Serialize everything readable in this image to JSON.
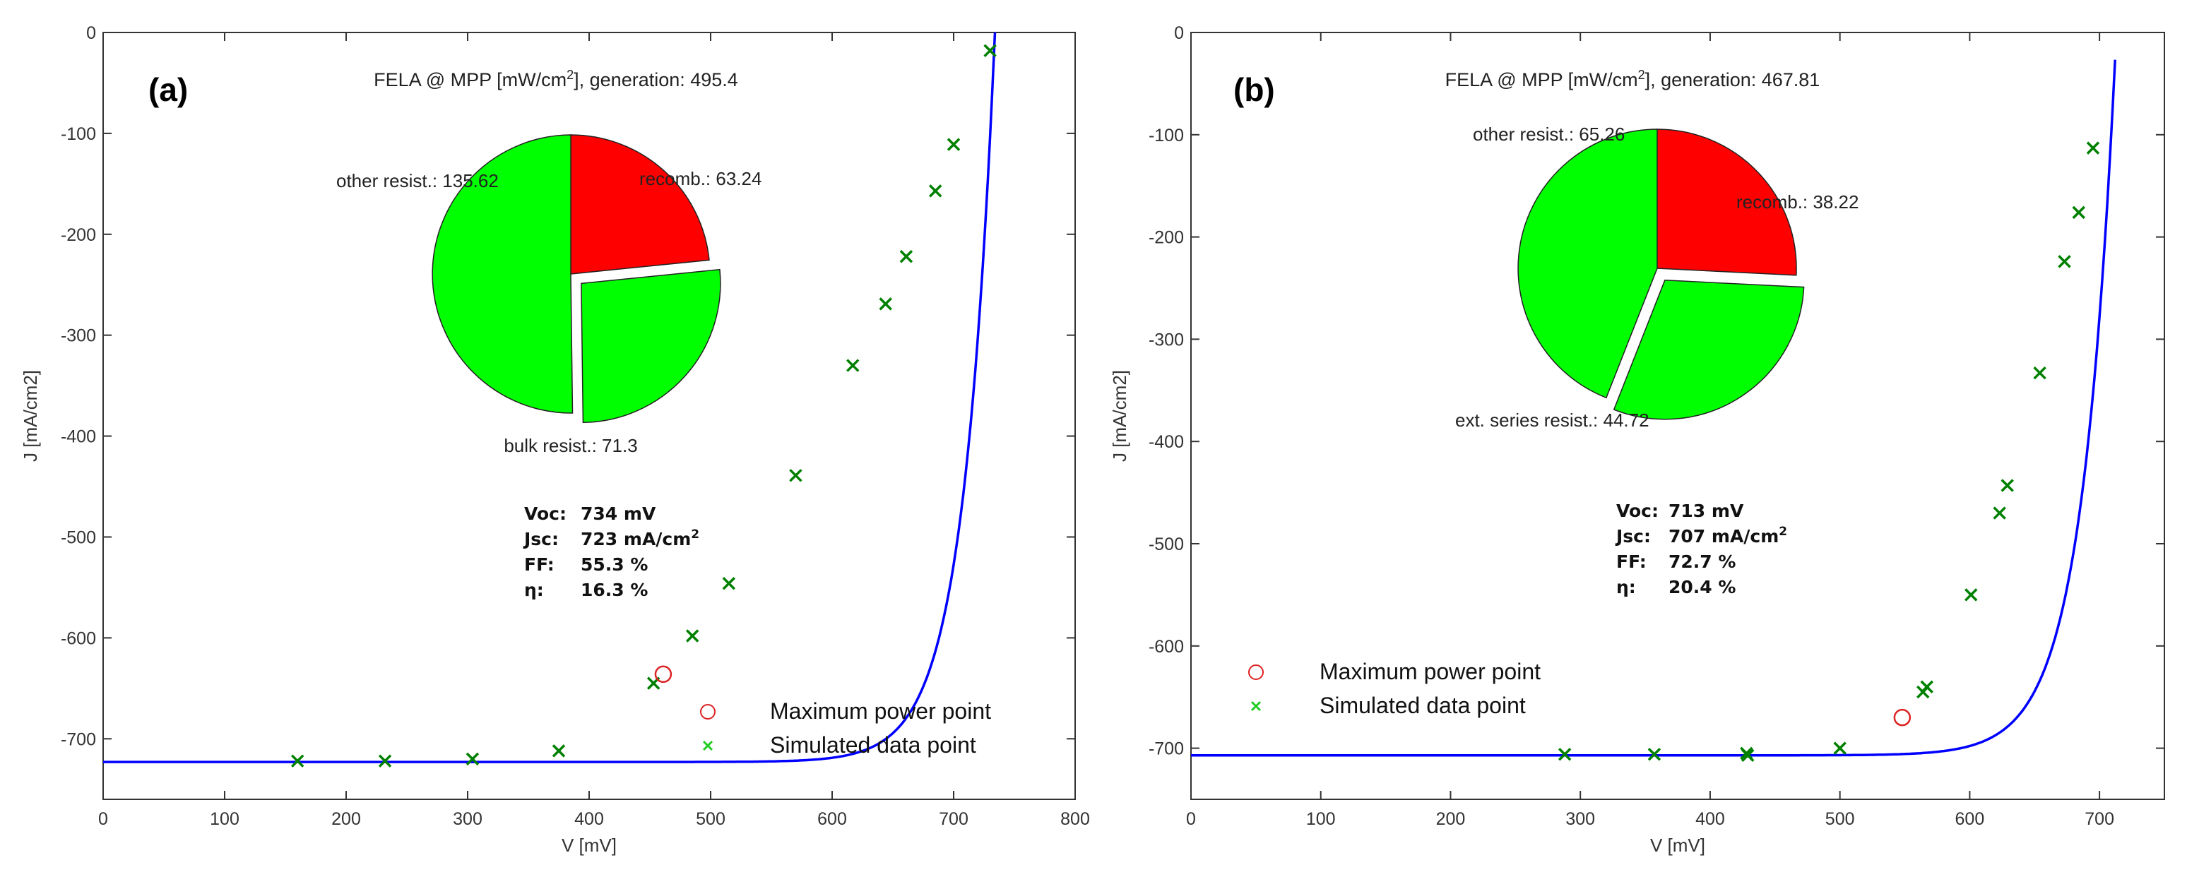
{
  "chart_data": [
    {
      "type": "line",
      "panel": "(a)",
      "title_prefix": "FELA @ MPP [mW/cm",
      "title_sup": "2",
      "title_suffix": "], generation: 495.4",
      "xlabel": "V [mV]",
      "ylabel": "J [mA/cm2]",
      "xlim": [
        0,
        800
      ],
      "ylim": [
        -760,
        0
      ],
      "xticks": [
        0,
        100,
        200,
        300,
        400,
        500,
        600,
        700,
        800
      ],
      "yticks": [
        0,
        -100,
        -200,
        -300,
        -400,
        -500,
        -600,
        -700
      ],
      "curve": {
        "jsc": -723,
        "voc": 734
      },
      "simulated_points": [
        [
          160,
          -722
        ],
        [
          232,
          -722
        ],
        [
          304,
          -720
        ],
        [
          375,
          -712
        ],
        [
          453,
          -645
        ],
        [
          485,
          -598
        ],
        [
          515,
          -546
        ],
        [
          570,
          -439
        ],
        [
          617,
          -330
        ],
        [
          644,
          -269
        ],
        [
          661,
          -222
        ],
        [
          685,
          -157
        ],
        [
          700,
          -111
        ],
        [
          730,
          -18
        ]
      ],
      "mpp": [
        461,
        -636
      ],
      "pie": {
        "slices": [
          {
            "label": "recomb.: 63.24",
            "value": 63.24,
            "color": "#ff0000",
            "explode": 0
          },
          {
            "label": "bulk resist.: 71.3",
            "value": 71.3,
            "color": "#00ff00",
            "explode": 1
          },
          {
            "label": "other resist.: 135.62",
            "value": 135.62,
            "color": "#00ff00",
            "explode": 0
          }
        ]
      },
      "stats": [
        {
          "key": "Voc:",
          "value": "734 mV"
        },
        {
          "key": "Jsc:",
          "value": "723 mA/cm",
          "sup": "2"
        },
        {
          "key": "FF:",
          "value": "55.3 %"
        },
        {
          "key": "η:",
          "value": "16.3 %"
        }
      ],
      "legend": [
        "Maximum power point",
        "Simulated data point"
      ],
      "colors": {
        "curve": "#0000ff",
        "marker": "#008000",
        "mpp": "#dd2222",
        "legend_x": "#22cc22"
      }
    },
    {
      "type": "line",
      "panel": "(b)",
      "title_prefix": "FELA @ MPP [mW/cm",
      "title_sup": "2",
      "title_suffix": "], generation: 467.81",
      "xlabel": "V [mV]",
      "ylabel": "J [mA/cm2]",
      "xlim": [
        0,
        750
      ],
      "ylim": [
        -750,
        0
      ],
      "xticks": [
        0,
        100,
        200,
        300,
        400,
        500,
        600,
        700
      ],
      "yticks": [
        0,
        -100,
        -200,
        -300,
        -400,
        -500,
        -600,
        -700
      ],
      "curve": {
        "jsc": -707,
        "voc": 713
      },
      "simulated_points": [
        [
          288,
          -706
        ],
        [
          357,
          -706
        ],
        [
          428,
          -705
        ],
        [
          429,
          -707
        ],
        [
          500,
          -700
        ],
        [
          564,
          -645
        ],
        [
          567,
          -640
        ],
        [
          601,
          -550
        ],
        [
          623,
          -470
        ],
        [
          629,
          -443
        ],
        [
          654,
          -333
        ],
        [
          673,
          -224
        ],
        [
          684,
          -176
        ],
        [
          695,
          -113
        ]
      ],
      "mpp": [
        548,
        -670
      ],
      "pie": {
        "slices": [
          {
            "label": "recomb.: 38.22",
            "value": 38.22,
            "color": "#ff0000",
            "explode": 0
          },
          {
            "label": "ext. series resist.: 44.72",
            "value": 44.72,
            "color": "#00ff00",
            "explode": 1
          },
          {
            "label": "other resist.: 65.26",
            "value": 65.26,
            "color": "#00ff00",
            "explode": 0
          }
        ]
      },
      "stats": [
        {
          "key": "Voc:",
          "value": "713 mV"
        },
        {
          "key": "Jsc:",
          "value": "707 mA/cm",
          "sup": "2"
        },
        {
          "key": "FF:",
          "value": "72.7 %"
        },
        {
          "key": "η:",
          "value": "20.4 %"
        }
      ],
      "legend": [
        "Maximum power point",
        "Simulated data point"
      ],
      "colors": {
        "curve": "#0000ff",
        "marker": "#008000",
        "mpp": "#dd2222",
        "legend_x": "#22cc22"
      }
    }
  ]
}
